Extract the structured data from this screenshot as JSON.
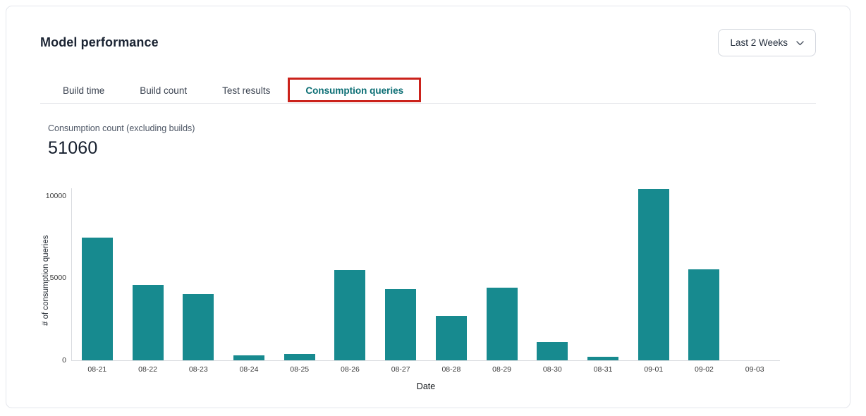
{
  "header": {
    "title": "Model performance",
    "range_selector": {
      "label": "Last 2 Weeks",
      "icon": "chevron-down-icon"
    }
  },
  "tabs": [
    {
      "label": "Build time",
      "active": false
    },
    {
      "label": "Build count",
      "active": false
    },
    {
      "label": "Test results",
      "active": false
    },
    {
      "label": "Consumption queries",
      "active": true,
      "annotated": true
    }
  ],
  "metric": {
    "label": "Consumption count (excluding builds)",
    "value": "51060"
  },
  "chart_data": {
    "type": "bar",
    "title": "Consumption count (excluding builds)",
    "categories": [
      "08-21",
      "08-22",
      "08-23",
      "08-24",
      "08-25",
      "08-26",
      "08-27",
      "08-28",
      "08-29",
      "08-30",
      "08-31",
      "09-01",
      "09-02",
      "09-03"
    ],
    "values": [
      7450,
      4600,
      4050,
      300,
      400,
      5480,
      4330,
      2700,
      4440,
      1110,
      200,
      10450,
      5550,
      0
    ],
    "xlabel": "Date",
    "ylabel": "# of consumption queries",
    "yticks": [
      0,
      5000,
      10000
    ],
    "ylim": [
      0,
      11000
    ],
    "grid": false,
    "legend": false,
    "bar_color": "#178a8f"
  },
  "colors": {
    "bar": "#178a8f",
    "active_tab_text": "#0b6e74",
    "annotation_red": "#cb221b",
    "card_border": "#e4e6ec",
    "title_text": "#1b2433"
  }
}
